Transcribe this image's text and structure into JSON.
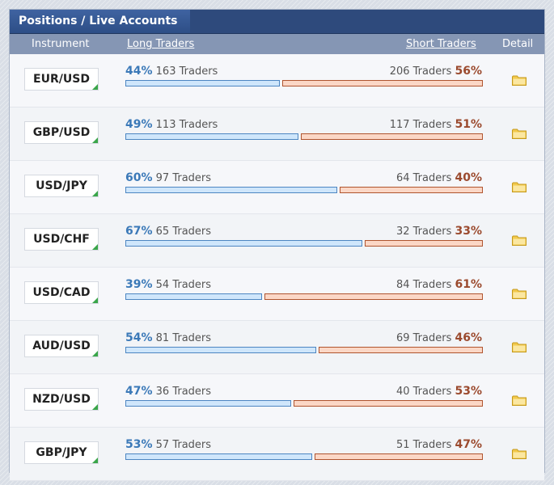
{
  "panel": {
    "title": "Positions / Live Accounts"
  },
  "columns": {
    "instrument": "Instrument",
    "long": "Long Traders",
    "short": "Short Traders",
    "detail": "Detail"
  },
  "colors": {
    "long_pct": "#3b79b8",
    "short_pct": "#9b4a2e",
    "long_bar": "#cfe6fb",
    "short_bar": "#fbd7c6",
    "folder": "#f2c94c"
  },
  "rows": [
    {
      "instrument": "EUR/USD",
      "long_pct": "44%",
      "long_traders": "163 Traders",
      "short_traders": "206 Traders",
      "short_pct": "56%",
      "long_share": 0.44,
      "detail_icon": "folder-icon"
    },
    {
      "instrument": "GBP/USD",
      "long_pct": "49%",
      "long_traders": "113 Traders",
      "short_traders": "117 Traders",
      "short_pct": "51%",
      "long_share": 0.49,
      "detail_icon": "folder-icon"
    },
    {
      "instrument": "USD/JPY",
      "long_pct": "60%",
      "long_traders": "97 Traders",
      "short_traders": "64 Traders",
      "short_pct": "40%",
      "long_share": 0.6,
      "detail_icon": "folder-icon"
    },
    {
      "instrument": "USD/CHF",
      "long_pct": "67%",
      "long_traders": "65 Traders",
      "short_traders": "32 Traders",
      "short_pct": "33%",
      "long_share": 0.67,
      "detail_icon": "folder-icon"
    },
    {
      "instrument": "USD/CAD",
      "long_pct": "39%",
      "long_traders": "54 Traders",
      "short_traders": "84 Traders",
      "short_pct": "61%",
      "long_share": 0.39,
      "detail_icon": "folder-icon"
    },
    {
      "instrument": "AUD/USD",
      "long_pct": "54%",
      "long_traders": "81 Traders",
      "short_traders": "69 Traders",
      "short_pct": "46%",
      "long_share": 0.54,
      "detail_icon": "folder-icon"
    },
    {
      "instrument": "NZD/USD",
      "long_pct": "47%",
      "long_traders": "36 Traders",
      "short_traders": "40 Traders",
      "short_pct": "53%",
      "long_share": 0.47,
      "detail_icon": "folder-icon"
    },
    {
      "instrument": "GBP/JPY",
      "long_pct": "53%",
      "long_traders": "57 Traders",
      "short_traders": "51 Traders",
      "short_pct": "47%",
      "long_share": 0.53,
      "detail_icon": "folder-icon"
    }
  ]
}
